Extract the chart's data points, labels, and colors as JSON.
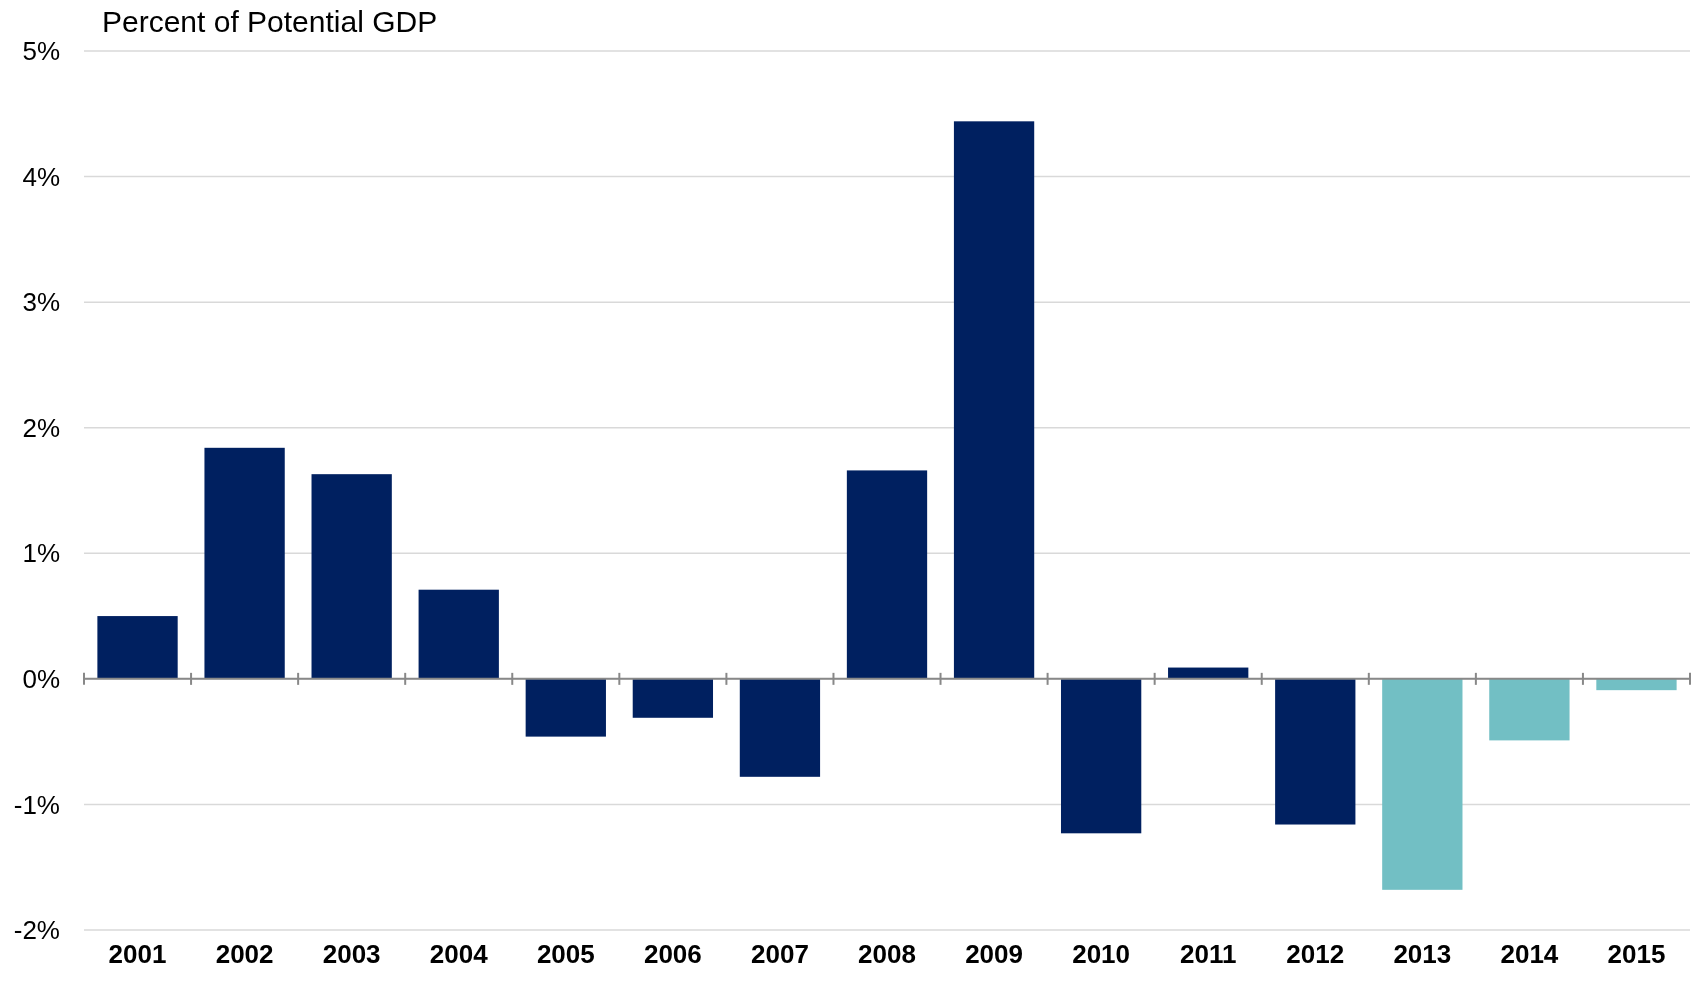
{
  "chart_data": {
    "type": "bar",
    "title": "Percent of Potential GDP",
    "categories": [
      "2001",
      "2002",
      "2003",
      "2004",
      "2005",
      "2006",
      "2007",
      "2008",
      "2009",
      "2010",
      "2011",
      "2012",
      "2013",
      "2014",
      "2015"
    ],
    "values": [
      0.5,
      1.84,
      1.63,
      0.71,
      -0.46,
      -0.31,
      -0.78,
      1.66,
      4.44,
      -1.23,
      0.09,
      -1.16,
      -1.68,
      -0.49,
      -0.09
    ],
    "colors": [
      "#002060",
      "#002060",
      "#002060",
      "#002060",
      "#002060",
      "#002060",
      "#002060",
      "#002060",
      "#002060",
      "#002060",
      "#002060",
      "#002060",
      "#72bfc4",
      "#72bfc4",
      "#72bfc4"
    ],
    "ylim": [
      -2,
      5
    ],
    "yticks": [
      {
        "value": -2,
        "label": "-2%"
      },
      {
        "value": -1,
        "label": "-1%"
      },
      {
        "value": 0,
        "label": "0%"
      },
      {
        "value": 1,
        "label": "1%"
      },
      {
        "value": 2,
        "label": "2%"
      },
      {
        "value": 3,
        "label": "3%"
      },
      {
        "value": 4,
        "label": "4%"
      },
      {
        "value": 5,
        "label": "5%"
      }
    ],
    "grid": "y"
  }
}
